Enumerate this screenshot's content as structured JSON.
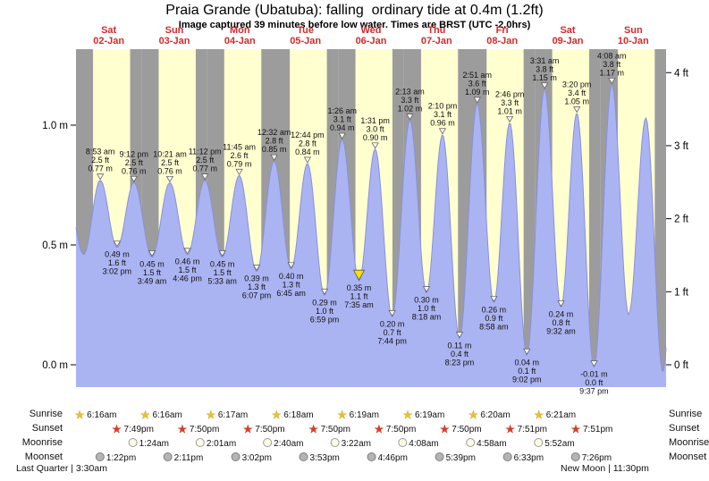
{
  "title": "Praia Grande (Ubatuba): falling  ordinary tide at 0.4m (1.2ft)",
  "subtitle": "Image captured 39 minutes before low water. Times are BRST (UTC -2.0hrs)",
  "days": [
    {
      "dow": "Sat",
      "date": "02-Jan"
    },
    {
      "dow": "Sun",
      "date": "03-Jan"
    },
    {
      "dow": "Mon",
      "date": "04-Jan"
    },
    {
      "dow": "Tue",
      "date": "05-Jan"
    },
    {
      "dow": "Wed",
      "date": "06-Jan"
    },
    {
      "dow": "Thu",
      "date": "07-Jan"
    },
    {
      "dow": "Fri",
      "date": "08-Jan"
    },
    {
      "dow": "Sat",
      "date": "09-Jan"
    },
    {
      "dow": "Sun",
      "date": "10-Jan"
    }
  ],
  "chart_data": {
    "type": "area",
    "title": "Praia Grande (Ubatuba) tide height over 9 days",
    "y_axis_left": {
      "unit": "m",
      "ticks": [
        {
          "label": "1.0 m",
          "value": 1.0
        },
        {
          "label": "0.5 m",
          "value": 0.5
        },
        {
          "label": "0.0 m",
          "value": 0.0
        }
      ]
    },
    "y_axis_right": {
      "unit": "ft",
      "ticks": [
        {
          "label": "4 ft",
          "value": 4
        },
        {
          "label": "3 ft",
          "value": 3
        },
        {
          "label": "2 ft",
          "value": 2
        },
        {
          "label": "1 ft",
          "value": 1
        },
        {
          "label": "0 ft",
          "value": 0
        }
      ]
    },
    "tide_events": [
      {
        "day": 0,
        "type": "high",
        "time": "8:53 am",
        "ft": "2.5 ft",
        "m": "0.77 m"
      },
      {
        "day": 0,
        "type": "low",
        "time": "3:02 pm",
        "ft": "1.6 ft",
        "m": "0.49 m"
      },
      {
        "day": 0,
        "type": "high",
        "time": "9:12 pm",
        "ft": "2.5 ft",
        "m": "0.76 m"
      },
      {
        "day": 1,
        "type": "low",
        "time": "3:49 am",
        "ft": "1.5 ft",
        "m": "0.45 m"
      },
      {
        "day": 1,
        "type": "high",
        "time": "10:21 am",
        "ft": "2.5 ft",
        "m": "0.76 m"
      },
      {
        "day": 1,
        "type": "low",
        "time": "4:46 pm",
        "ft": "1.5 ft",
        "m": "0.46 m"
      },
      {
        "day": 1,
        "type": "high",
        "time": "11:12 pm",
        "ft": "2.5 ft",
        "m": "0.77 m"
      },
      {
        "day": 2,
        "type": "low",
        "time": "5:33 am",
        "ft": "1.5 ft",
        "m": "0.45 m"
      },
      {
        "day": 2,
        "type": "high",
        "time": "11:45 am",
        "ft": "2.6 ft",
        "m": "0.79 m"
      },
      {
        "day": 2,
        "type": "low",
        "time": "6:07 pm",
        "ft": "1.3 ft",
        "m": "0.39 m"
      },
      {
        "day": 3,
        "type": "high",
        "time": "12:32 am",
        "ft": "2.8 ft",
        "m": "0.85 m"
      },
      {
        "day": 3,
        "type": "low",
        "time": "6:45 am",
        "ft": "1.3 ft",
        "m": "0.40 m"
      },
      {
        "day": 3,
        "type": "high",
        "time": "12:44 pm",
        "ft": "2.8 ft",
        "m": "0.84 m"
      },
      {
        "day": 3,
        "type": "low",
        "time": "6:59 pm",
        "ft": "1.0 ft",
        "m": "0.29 m"
      },
      {
        "day": 4,
        "type": "high",
        "time": "1:26 am",
        "ft": "3.1 ft",
        "m": "0.94 m"
      },
      {
        "day": 4,
        "type": "low",
        "time": "7:35 am",
        "ft": "1.1 ft",
        "m": "0.35 m",
        "current": true
      },
      {
        "day": 4,
        "type": "high",
        "time": "1:31 pm",
        "ft": "3.0 ft",
        "m": "0.90 m"
      },
      {
        "day": 4,
        "type": "low",
        "time": "7:44 pm",
        "ft": "0.7 ft",
        "m": "0.20 m"
      },
      {
        "day": 5,
        "type": "high",
        "time": "2:13 am",
        "ft": "3.3 ft",
        "m": "1.02 m"
      },
      {
        "day": 5,
        "type": "low",
        "time": "8:18 am",
        "ft": "1.0 ft",
        "m": "0.30 m"
      },
      {
        "day": 5,
        "type": "high",
        "time": "2:10 pm",
        "ft": "3.1 ft",
        "m": "0.96 m"
      },
      {
        "day": 5,
        "type": "low",
        "time": "8:23 pm",
        "ft": "0.4 ft",
        "m": "0.11 m"
      },
      {
        "day": 6,
        "type": "high",
        "time": "2:51 am",
        "ft": "3.6 ft",
        "m": "1.09 m"
      },
      {
        "day": 6,
        "type": "low",
        "time": "8:58 am",
        "ft": "0.9 ft",
        "m": "0.26 m"
      },
      {
        "day": 6,
        "type": "high",
        "time": "2:46 pm",
        "ft": "3.3 ft",
        "m": "1.01 m"
      },
      {
        "day": 6,
        "type": "low",
        "time": "9:02 pm",
        "ft": "0.1 ft",
        "m": "0.04 m"
      },
      {
        "day": 7,
        "type": "high",
        "time": "3:31 am",
        "ft": "3.8 ft",
        "m": "1.15 m"
      },
      {
        "day": 7,
        "type": "low",
        "time": "9:32 am",
        "ft": "0.8 ft",
        "m": "0.24 m"
      },
      {
        "day": 7,
        "type": "high",
        "time": "3:20 pm",
        "ft": "3.4 ft",
        "m": "1.05 m"
      },
      {
        "day": 7,
        "type": "low",
        "time": "9:37 pm",
        "ft": "0.0 ft",
        "m": "-0.01 m"
      },
      {
        "day": 8,
        "type": "high",
        "time": "4:08 am",
        "ft": "3.8 ft",
        "m": "1.17 m"
      }
    ],
    "curve_padding_points": [
      {
        "t_hours": -3.6,
        "m": 0.74
      },
      {
        "t_hours": 2.8,
        "m": 0.46
      },
      {
        "t_hours": 202.3,
        "m": 0.21
      },
      {
        "t_hours": 208.6,
        "m": 1.03
      },
      {
        "t_hours": 214.8,
        "m": -0.03
      },
      {
        "t_hours": 221.0,
        "m": 1.1
      }
    ],
    "colors": {
      "night_band": "#9c9c9c",
      "day_band": "#ffffd0",
      "water_fill": "#abb4f2",
      "water_edge": "#8990dd",
      "day_label_red": "#d42a2a",
      "current_marker": "#ffe000",
      "extreme_marker": "#f8f8f8"
    }
  },
  "astro": {
    "rows": [
      {
        "name": "Sunrise",
        "icon": "sunrise-star",
        "entries": [
          {
            "day": 0,
            "time": "6:16am"
          },
          {
            "day": 1,
            "time": "6:16am"
          },
          {
            "day": 2,
            "time": "6:17am"
          },
          {
            "day": 3,
            "time": "6:18am"
          },
          {
            "day": 4,
            "time": "6:19am"
          },
          {
            "day": 5,
            "time": "6:19am"
          },
          {
            "day": 6,
            "time": "6:20am"
          },
          {
            "day": 7,
            "time": "6:21am"
          }
        ]
      },
      {
        "name": "Sunset",
        "icon": "sunset-star",
        "entries": [
          {
            "day": 0,
            "time": "7:49pm"
          },
          {
            "day": 1,
            "time": "7:50pm"
          },
          {
            "day": 2,
            "time": "7:50pm"
          },
          {
            "day": 3,
            "time": "7:50pm"
          },
          {
            "day": 4,
            "time": "7:50pm"
          },
          {
            "day": 5,
            "time": "7:50pm"
          },
          {
            "day": 6,
            "time": "7:51pm"
          },
          {
            "day": 7,
            "time": "7:51pm"
          }
        ]
      },
      {
        "name": "Moonrise",
        "icon": "moonrise-circle",
        "entries": [
          {
            "day": 1,
            "time": "1:24am"
          },
          {
            "day": 2,
            "time": "2:01am"
          },
          {
            "day": 3,
            "time": "2:40am"
          },
          {
            "day": 4,
            "time": "3:22am"
          },
          {
            "day": 5,
            "time": "4:08am"
          },
          {
            "day": 6,
            "time": "4:58am"
          },
          {
            "day": 7,
            "time": "5:52am"
          }
        ]
      },
      {
        "name": "Moonset",
        "icon": "moonset-circle",
        "entries": [
          {
            "day": 0,
            "time": "1:22pm"
          },
          {
            "day": 1,
            "time": "2:11pm"
          },
          {
            "day": 2,
            "time": "3:02pm"
          },
          {
            "day": 3,
            "time": "3:53pm"
          },
          {
            "day": 4,
            "time": "4:46pm"
          },
          {
            "day": 5,
            "time": "5:39pm"
          },
          {
            "day": 6,
            "time": "6:33pm"
          },
          {
            "day": 7,
            "time": "7:26pm"
          }
        ]
      }
    ],
    "moon_phase_left": "Last Quarter | 3:30am",
    "moon_phase_right": "New Moon | 11:30pm"
  }
}
